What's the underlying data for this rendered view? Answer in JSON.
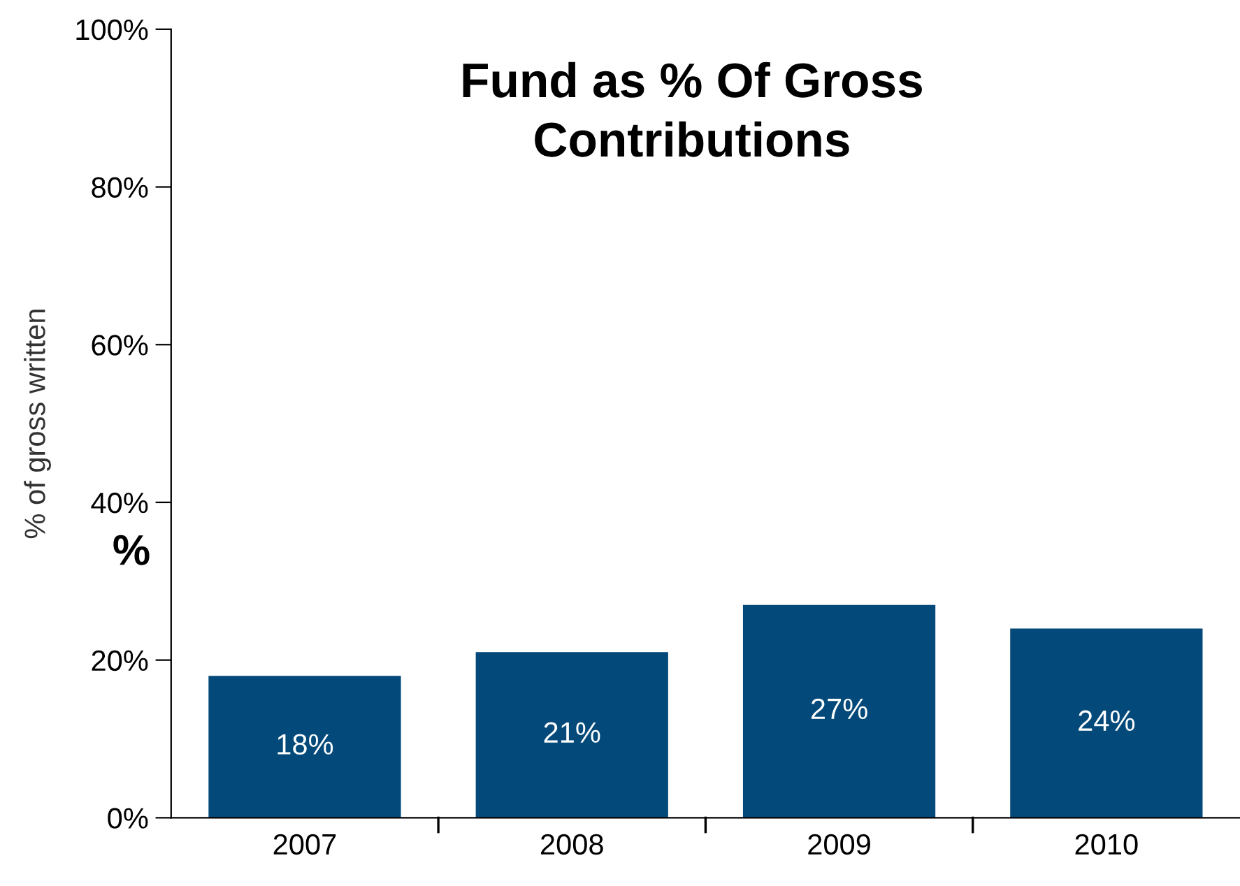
{
  "chart_data": {
    "type": "bar",
    "title": "Fund as % Of Gross\nContributions",
    "ylabel": "% of gross written",
    "annotations": [
      "%"
    ],
    "categories": [
      "2007",
      "2008",
      "2009",
      "2010"
    ],
    "values": [
      18,
      21,
      27,
      24
    ],
    "value_labels": [
      "18%",
      "21%",
      "27%",
      "24%"
    ],
    "color": "#03497a",
    "ylim": [
      0,
      100
    ],
    "yticks": [
      {
        "value": 0,
        "label": "0%"
      },
      {
        "value": 20,
        "label": "20%"
      },
      {
        "value": 40,
        "label": "40%"
      },
      {
        "value": 60,
        "label": "60%"
      },
      {
        "value": 80,
        "label": "80%"
      },
      {
        "value": 100,
        "label": "100%"
      }
    ],
    "grid": false,
    "legend": false
  }
}
